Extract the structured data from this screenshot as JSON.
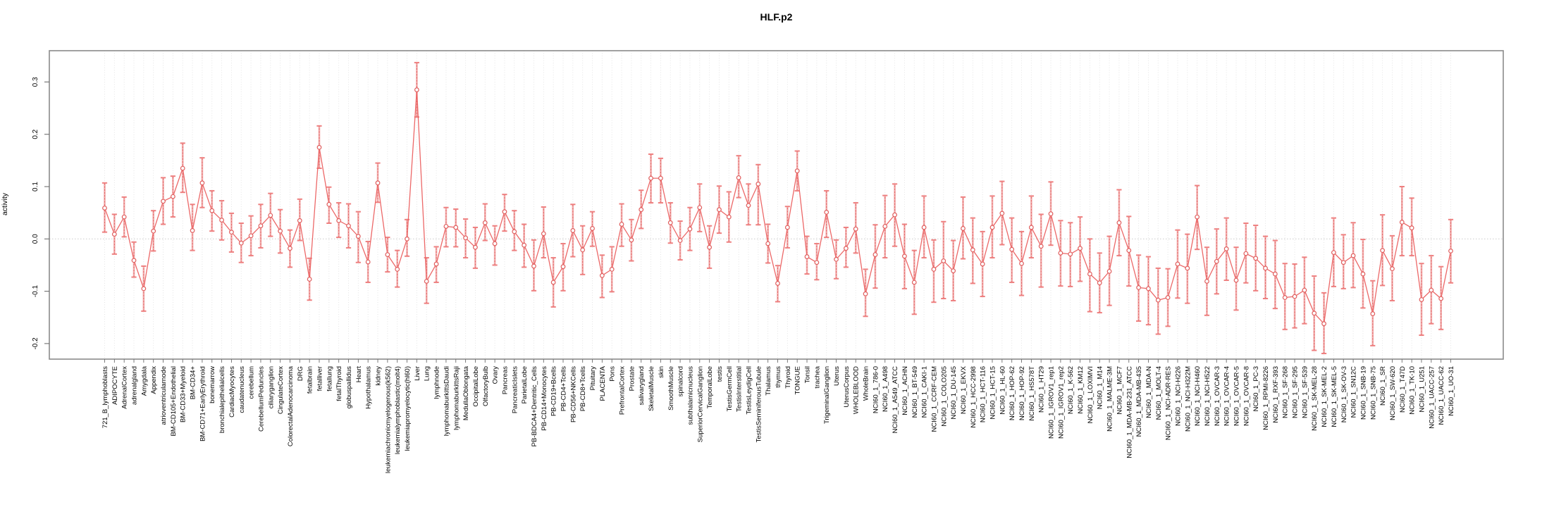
{
  "chart_data": {
    "type": "line",
    "title": "HLF.p2",
    "ylabel": "activity",
    "xlabel": "",
    "ylim": [
      -0.23,
      0.36
    ],
    "yticks": [
      0.3,
      0.2,
      0.1,
      0.0,
      -0.1,
      -0.2
    ],
    "grid": "vertical dotted gridline per category, dotted horizontal zero line",
    "legend": "none",
    "series_color": "#ec6868",
    "point_color": "#e05e5e",
    "errorbar_color": "#f09a9a",
    "points": [
      {
        "label": "721_B_lymphoblasts",
        "value": 0.059,
        "lo": 0.013,
        "hi": 0.107
      },
      {
        "label": "ADIPOCYTE",
        "value": 0.009,
        "lo": -0.029,
        "hi": 0.047
      },
      {
        "label": "AdrenalCortex",
        "value": 0.042,
        "lo": 0.004,
        "hi": 0.08
      },
      {
        "label": "adrenalgland",
        "value": -0.041,
        "lo": -0.073,
        "hi": -0.006
      },
      {
        "label": "Amygdala",
        "value": -0.095,
        "lo": -0.138,
        "hi": -0.052
      },
      {
        "label": "Appendix",
        "value": 0.015,
        "lo": -0.023,
        "hi": 0.054
      },
      {
        "label": "atrioventricularnode",
        "value": 0.072,
        "lo": 0.028,
        "hi": 0.117
      },
      {
        "label": "BM-CD105+Endothelial",
        "value": 0.081,
        "lo": 0.042,
        "hi": 0.12
      },
      {
        "label": "BM-CD33+Myeloid",
        "value": 0.135,
        "lo": 0.089,
        "hi": 0.183
      },
      {
        "label": "BM-CD34+",
        "value": 0.016,
        "lo": -0.022,
        "hi": 0.066
      },
      {
        "label": "BM-CD71+EarlyErythroid",
        "value": 0.107,
        "lo": 0.06,
        "hi": 0.155
      },
      {
        "label": "bonemarrow",
        "value": 0.054,
        "lo": 0.015,
        "hi": 0.092
      },
      {
        "label": "bronchialepithelialcells",
        "value": 0.036,
        "lo": -0.002,
        "hi": 0.073
      },
      {
        "label": "CardiacMyocytes",
        "value": 0.013,
        "lo": -0.025,
        "hi": 0.049
      },
      {
        "label": "caudatenucleus",
        "value": -0.008,
        "lo": -0.045,
        "hi": 0.03
      },
      {
        "label": "cerebellum",
        "value": 0.006,
        "lo": -0.032,
        "hi": 0.044
      },
      {
        "label": "CerebellumPeduncles",
        "value": 0.025,
        "lo": -0.017,
        "hi": 0.066
      },
      {
        "label": "ciliaryganglion",
        "value": 0.045,
        "lo": 0.005,
        "hi": 0.087
      },
      {
        "label": "CingulateCortex",
        "value": 0.015,
        "lo": -0.027,
        "hi": 0.056
      },
      {
        "label": "ColorectalAdenocarcinoma",
        "value": -0.018,
        "lo": -0.054,
        "hi": 0.017
      },
      {
        "label": "DRG",
        "value": 0.035,
        "lo": -0.003,
        "hi": 0.076
      },
      {
        "label": "fetalbrain",
        "value": -0.077,
        "lo": -0.117,
        "hi": -0.037
      },
      {
        "label": "fetalliver",
        "value": 0.175,
        "lo": 0.135,
        "hi": 0.216
      },
      {
        "label": "fetallung",
        "value": 0.066,
        "lo": 0.03,
        "hi": 0.099
      },
      {
        "label": "fetalThyroid",
        "value": 0.035,
        "lo": 0.003,
        "hi": 0.069
      },
      {
        "label": "globuspallidus",
        "value": 0.025,
        "lo": -0.017,
        "hi": 0.067
      },
      {
        "label": "Heart",
        "value": 0.005,
        "lo": -0.045,
        "hi": 0.052
      },
      {
        "label": "Hypothalamus",
        "value": -0.044,
        "lo": -0.083,
        "hi": -0.005
      },
      {
        "label": "kidney",
        "value": 0.107,
        "lo": 0.07,
        "hi": 0.145
      },
      {
        "label": "leukemiachronicmyelogenous(k562)",
        "value": -0.03,
        "lo": -0.063,
        "hi": 0.003
      },
      {
        "label": "leukemialymphoblastic(molt4)",
        "value": -0.058,
        "lo": -0.092,
        "hi": -0.022
      },
      {
        "label": "leukemiapromyelocytic(hl60)",
        "value": 0.0,
        "lo": -0.033,
        "hi": 0.037
      },
      {
        "label": "Liver",
        "value": 0.285,
        "lo": 0.233,
        "hi": 0.337
      },
      {
        "label": "Lung",
        "value": -0.081,
        "lo": -0.123,
        "hi": -0.036
      },
      {
        "label": "lymphnode",
        "value": -0.048,
        "lo": -0.083,
        "hi": -0.015
      },
      {
        "label": "lymphomaburkittsDaudi",
        "value": 0.024,
        "lo": -0.015,
        "hi": 0.06
      },
      {
        "label": "lymphomaburkittsRaji",
        "value": 0.022,
        "lo": -0.015,
        "hi": 0.057
      },
      {
        "label": "MedullaOblongata",
        "value": 0.002,
        "lo": -0.036,
        "hi": 0.038
      },
      {
        "label": "OccipitalLobe",
        "value": -0.016,
        "lo": -0.056,
        "hi": 0.022
      },
      {
        "label": "OlfactoryBulb",
        "value": 0.031,
        "lo": -0.003,
        "hi": 0.067
      },
      {
        "label": "Ovary",
        "value": -0.009,
        "lo": -0.05,
        "hi": 0.025
      },
      {
        "label": "Pancreas",
        "value": 0.052,
        "lo": 0.015,
        "hi": 0.085
      },
      {
        "label": "PancreaticIslets",
        "value": 0.014,
        "lo": -0.022,
        "hi": 0.054
      },
      {
        "label": "ParietalLobe",
        "value": -0.012,
        "lo": -0.054,
        "hi": 0.028
      },
      {
        "label": "PB-BDCA4+Dentritic_Cells",
        "value": -0.052,
        "lo": -0.099,
        "hi": -0.002
      },
      {
        "label": "PB-CD14+Monocytes",
        "value": 0.01,
        "lo": -0.036,
        "hi": 0.061
      },
      {
        "label": "PB-CD19+Bcells",
        "value": -0.083,
        "lo": -0.13,
        "hi": -0.036
      },
      {
        "label": "PB-CD4+Tcells",
        "value": -0.053,
        "lo": -0.099,
        "hi": -0.009
      },
      {
        "label": "PB-CD56+NKCells",
        "value": 0.016,
        "lo": -0.034,
        "hi": 0.066
      },
      {
        "label": "PB-CD8+Tcells",
        "value": -0.021,
        "lo": -0.068,
        "hi": 0.025
      },
      {
        "label": "Pituitary",
        "value": 0.02,
        "lo": -0.014,
        "hi": 0.052
      },
      {
        "label": "PLACENTA",
        "value": -0.07,
        "lo": -0.112,
        "hi": -0.031
      },
      {
        "label": "Pons",
        "value": -0.058,
        "lo": -0.101,
        "hi": -0.015
      },
      {
        "label": "PrefrontalCortex",
        "value": 0.028,
        "lo": -0.014,
        "hi": 0.067
      },
      {
        "label": "Prostate",
        "value": -0.002,
        "lo": -0.042,
        "hi": 0.037
      },
      {
        "label": "salivarygland",
        "value": 0.056,
        "lo": 0.02,
        "hi": 0.093
      },
      {
        "label": "SkeletalMuscle",
        "value": 0.116,
        "lo": 0.069,
        "hi": 0.162
      },
      {
        "label": "skin",
        "value": 0.116,
        "lo": 0.069,
        "hi": 0.154
      },
      {
        "label": "SmoothMuscle",
        "value": 0.031,
        "lo": -0.008,
        "hi": 0.069
      },
      {
        "label": "spinalcord",
        "value": -0.003,
        "lo": -0.04,
        "hi": 0.034
      },
      {
        "label": "subthalamicnucleus",
        "value": 0.019,
        "lo": -0.022,
        "hi": 0.06
      },
      {
        "label": "SuperiorCervicalGanglion",
        "value": 0.06,
        "lo": 0.014,
        "hi": 0.105
      },
      {
        "label": "TemporalLobe",
        "value": -0.016,
        "lo": -0.056,
        "hi": 0.025
      },
      {
        "label": "testis",
        "value": 0.056,
        "lo": 0.011,
        "hi": 0.101
      },
      {
        "label": "TestisGermCell",
        "value": 0.042,
        "lo": -0.006,
        "hi": 0.09
      },
      {
        "label": "TestisInterstitial",
        "value": 0.117,
        "lo": 0.079,
        "hi": 0.159
      },
      {
        "label": "TestisLeydigCell",
        "value": 0.064,
        "lo": 0.027,
        "hi": 0.105
      },
      {
        "label": "TestisSeminiferousTubule",
        "value": 0.105,
        "lo": 0.027,
        "hi": 0.142
      },
      {
        "label": "Thalamus",
        "value": -0.009,
        "lo": -0.046,
        "hi": 0.028
      },
      {
        "label": "thymus",
        "value": -0.085,
        "lo": -0.12,
        "hi": -0.051
      },
      {
        "label": "Thyroid",
        "value": 0.022,
        "lo": -0.017,
        "hi": 0.062
      },
      {
        "label": "TONGUE",
        "value": 0.13,
        "lo": 0.092,
        "hi": 0.168
      },
      {
        "label": "Tonsil",
        "value": -0.034,
        "lo": -0.067,
        "hi": 0.005
      },
      {
        "label": "trachea",
        "value": -0.045,
        "lo": -0.078,
        "hi": -0.009
      },
      {
        "label": "TrigeminalGanglion",
        "value": 0.051,
        "lo": 0.003,
        "hi": 0.092
      },
      {
        "label": "Uterus",
        "value": -0.039,
        "lo": -0.076,
        "hi": -0.002
      },
      {
        "label": "UterusCorpus",
        "value": -0.018,
        "lo": -0.054,
        "hi": 0.022
      },
      {
        "label": "WHOLEBLOOD",
        "value": 0.019,
        "lo": -0.027,
        "hi": 0.069
      },
      {
        "label": "WholeBrain",
        "value": -0.105,
        "lo": -0.148,
        "hi": -0.058
      },
      {
        "label": "NCI60_1_786-0",
        "value": -0.03,
        "lo": -0.094,
        "hi": 0.027
      },
      {
        "label": "NCI60_1_A498",
        "value": 0.024,
        "lo": -0.036,
        "hi": 0.083
      },
      {
        "label": "NCI60_1_A549_ATCC",
        "value": 0.046,
        "lo": -0.014,
        "hi": 0.105
      },
      {
        "label": "NCI60_1_ACHN",
        "value": -0.033,
        "lo": -0.095,
        "hi": 0.028
      },
      {
        "label": "NCI60_1_BT-549",
        "value": -0.083,
        "lo": -0.144,
        "hi": -0.022
      },
      {
        "label": "NCI60_1_CAKI-1",
        "value": 0.022,
        "lo": -0.036,
        "hi": 0.082
      },
      {
        "label": "NCI60_1_CCRF-CEM",
        "value": -0.058,
        "lo": -0.121,
        "hi": -0.002
      },
      {
        "label": "NCI60_1_COLO205",
        "value": -0.042,
        "lo": -0.114,
        "hi": 0.033
      },
      {
        "label": "NCI60_1_DU-145",
        "value": -0.061,
        "lo": -0.118,
        "hi": -0.003
      },
      {
        "label": "NCI60_1_EKVX",
        "value": 0.02,
        "lo": -0.038,
        "hi": 0.08
      },
      {
        "label": "NCI60_1_HCC-2998",
        "value": -0.021,
        "lo": -0.085,
        "hi": 0.04
      },
      {
        "label": "NCI60_1_HCT-116",
        "value": -0.048,
        "lo": -0.11,
        "hi": 0.014
      },
      {
        "label": "NCI60_1_HCT-15",
        "value": 0.022,
        "lo": -0.036,
        "hi": 0.082
      },
      {
        "label": "NCI60_1_HL-60",
        "value": 0.049,
        "lo": -0.011,
        "hi": 0.11
      },
      {
        "label": "NCI60_1_HOP-62",
        "value": -0.02,
        "lo": -0.083,
        "hi": 0.04
      },
      {
        "label": "NCI60_1_HOP-92",
        "value": -0.047,
        "lo": -0.108,
        "hi": 0.014
      },
      {
        "label": "NCI60_1_HS578T",
        "value": 0.022,
        "lo": -0.036,
        "hi": 0.082
      },
      {
        "label": "NCI60_1_HT29",
        "value": -0.014,
        "lo": -0.092,
        "hi": 0.047
      },
      {
        "label": "NCI60_1_IGROV1_rep1",
        "value": 0.048,
        "lo": -0.012,
        "hi": 0.109
      },
      {
        "label": "NCI60_1_IGROV1_rep2",
        "value": -0.027,
        "lo": -0.09,
        "hi": 0.035
      },
      {
        "label": "NCI60_1_K-562",
        "value": -0.029,
        "lo": -0.091,
        "hi": 0.031
      },
      {
        "label": "NCI60_1_KM12",
        "value": -0.018,
        "lo": -0.081,
        "hi": 0.042
      },
      {
        "label": "NCI60_1_LOXIMVI",
        "value": -0.067,
        "lo": -0.139,
        "hi": 0.0
      },
      {
        "label": "NCI60_1_M14",
        "value": -0.084,
        "lo": -0.141,
        "hi": -0.027
      },
      {
        "label": "NCI60_1_MALME-3M",
        "value": -0.062,
        "lo": -0.127,
        "hi": 0.005
      },
      {
        "label": "NCI60_1_MCF7",
        "value": 0.031,
        "lo": -0.032,
        "hi": 0.094
      },
      {
        "label": "NCI60_1_MDA-MB-231_ATCC",
        "value": -0.022,
        "lo": -0.09,
        "hi": 0.043
      },
      {
        "label": "NCI60_1_MDA-MB-435",
        "value": -0.093,
        "lo": -0.157,
        "hi": -0.031
      },
      {
        "label": "NCI60_1_MDA-N",
        "value": -0.095,
        "lo": -0.164,
        "hi": -0.034
      },
      {
        "label": "NCI60_1_MOLT-4",
        "value": -0.117,
        "lo": -0.182,
        "hi": -0.056
      },
      {
        "label": "NCI60_1_NCI-ADR-RES",
        "value": -0.112,
        "lo": -0.167,
        "hi": -0.057
      },
      {
        "label": "NCI60_1_NCI-H226",
        "value": -0.048,
        "lo": -0.113,
        "hi": 0.017
      },
      {
        "label": "NCI60_1_NCI-H322M",
        "value": -0.056,
        "lo": -0.123,
        "hi": 0.009
      },
      {
        "label": "NCI60_1_NCI-H460",
        "value": 0.042,
        "lo": -0.02,
        "hi": 0.102
      },
      {
        "label": "NCI60_1_NCI-H522",
        "value": -0.081,
        "lo": -0.146,
        "hi": -0.016
      },
      {
        "label": "NCI60_1_OVCAR-3",
        "value": -0.043,
        "lo": -0.105,
        "hi": 0.019
      },
      {
        "label": "NCI60_1_OVCAR-4",
        "value": -0.019,
        "lo": -0.079,
        "hi": 0.04
      },
      {
        "label": "NCI60_1_OVCAR-5",
        "value": -0.079,
        "lo": -0.136,
        "hi": -0.016
      },
      {
        "label": "NCI60_1_OVCAR-8",
        "value": -0.028,
        "lo": -0.084,
        "hi": 0.03
      },
      {
        "label": "NCI60_1_PC-3",
        "value": -0.037,
        "lo": -0.099,
        "hi": 0.026
      },
      {
        "label": "NCI60_1_RPMI-8226",
        "value": -0.056,
        "lo": -0.114,
        "hi": 0.005
      },
      {
        "label": "NCI60_1_RXF-393",
        "value": -0.067,
        "lo": -0.133,
        "hi": -0.003
      },
      {
        "label": "NCI60_1_SF-268",
        "value": -0.112,
        "lo": -0.173,
        "hi": -0.047
      },
      {
        "label": "NCI60_1_SF-295",
        "value": -0.11,
        "lo": -0.17,
        "hi": -0.048
      },
      {
        "label": "NCI60_1_SF-539",
        "value": -0.098,
        "lo": -0.162,
        "hi": -0.035
      },
      {
        "label": "NCI60_1_SK-MEL-28",
        "value": -0.142,
        "lo": -0.213,
        "hi": -0.071
      },
      {
        "label": "NCI60_1_SK-MEL-2",
        "value": -0.162,
        "lo": -0.219,
        "hi": -0.103
      },
      {
        "label": "NCI60_1_SK-MEL-5",
        "value": -0.026,
        "lo": -0.091,
        "hi": 0.04
      },
      {
        "label": "NCI60_1_SK-OV-3",
        "value": -0.045,
        "lo": -0.095,
        "hi": 0.008
      },
      {
        "label": "NCI60_1_SN12C",
        "value": -0.032,
        "lo": -0.093,
        "hi": 0.031
      },
      {
        "label": "NCI60_1_SNB-19",
        "value": -0.067,
        "lo": -0.132,
        "hi": -0.001
      },
      {
        "label": "NCI60_1_SNB-75",
        "value": -0.143,
        "lo": -0.204,
        "hi": -0.08
      },
      {
        "label": "NCI60_1_SR",
        "value": -0.022,
        "lo": -0.089,
        "hi": 0.046
      },
      {
        "label": "NCI60_1_SW-620",
        "value": -0.057,
        "lo": -0.118,
        "hi": 0.006
      },
      {
        "label": "NCI60_1_T47D",
        "value": 0.032,
        "lo": -0.032,
        "hi": 0.1
      },
      {
        "label": "NCI60_1_TK-10",
        "value": 0.021,
        "lo": -0.032,
        "hi": 0.078
      },
      {
        "label": "NCI60_1_U251",
        "value": -0.116,
        "lo": -0.184,
        "hi": -0.047
      },
      {
        "label": "NCI60_1_UACC-257",
        "value": -0.098,
        "lo": -0.162,
        "hi": -0.032
      },
      {
        "label": "NCI60_1_UACC-62",
        "value": -0.114,
        "lo": -0.173,
        "hi": -0.053
      },
      {
        "label": "NCI60_1_UO-31",
        "value": -0.023,
        "lo": -0.084,
        "hi": 0.037
      }
    ]
  }
}
